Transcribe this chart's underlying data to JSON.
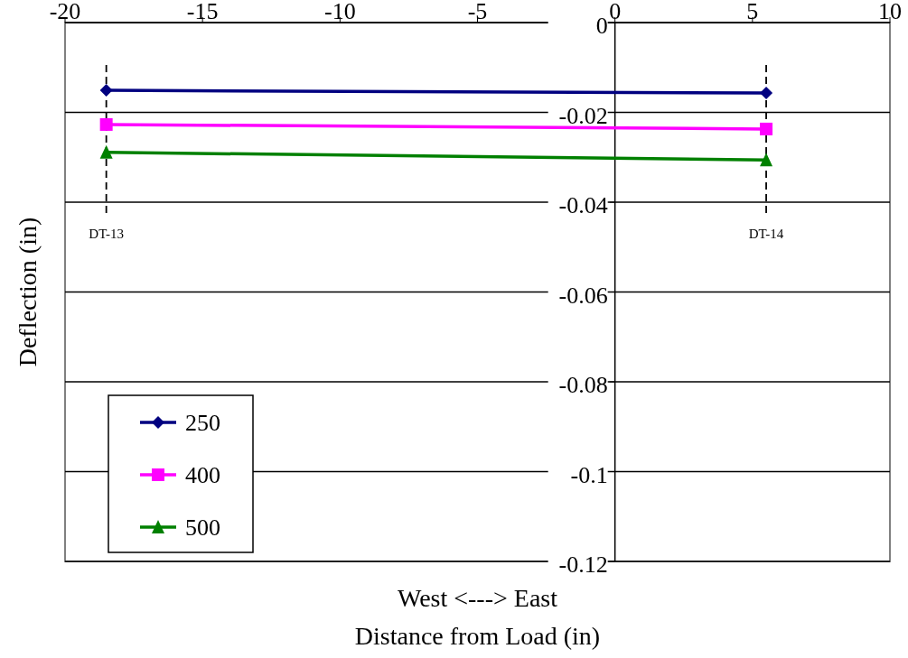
{
  "chart_data": {
    "type": "line",
    "xlabel": "Distance from Load (in)",
    "ylabel": "Deflection (in)",
    "annotations": [
      "West <---> East"
    ],
    "x": [
      -18.5,
      5.5
    ],
    "series": [
      {
        "name": "250",
        "color": "#000080",
        "marker": "diamond",
        "values": [
          -0.0151,
          -0.0157
        ]
      },
      {
        "name": "400",
        "color": "#ff00ff",
        "marker": "square",
        "values": [
          -0.0227,
          -0.0237
        ]
      },
      {
        "name": "500",
        "color": "#008000",
        "marker": "triangle",
        "values": [
          -0.0289,
          -0.0306
        ]
      }
    ],
    "xlim": [
      -20,
      10
    ],
    "xticks": [
      -20,
      -15,
      -10,
      -5,
      0,
      5,
      10
    ],
    "ylim": [
      -0.12,
      0
    ],
    "yticks": [
      0,
      -0.02,
      -0.04,
      -0.06,
      -0.08,
      -0.1,
      -0.12
    ],
    "grid": "y",
    "legend": "bottom left",
    "line_style": "solid",
    "ref_lines": [
      {
        "axis": "x",
        "value": -18.5,
        "label": "DT-13",
        "line_style": "dashed",
        "color": "#000000"
      },
      {
        "axis": "x",
        "value": 5.5,
        "label": "DT-14",
        "line_style": "dashed",
        "color": "#000000"
      }
    ]
  }
}
